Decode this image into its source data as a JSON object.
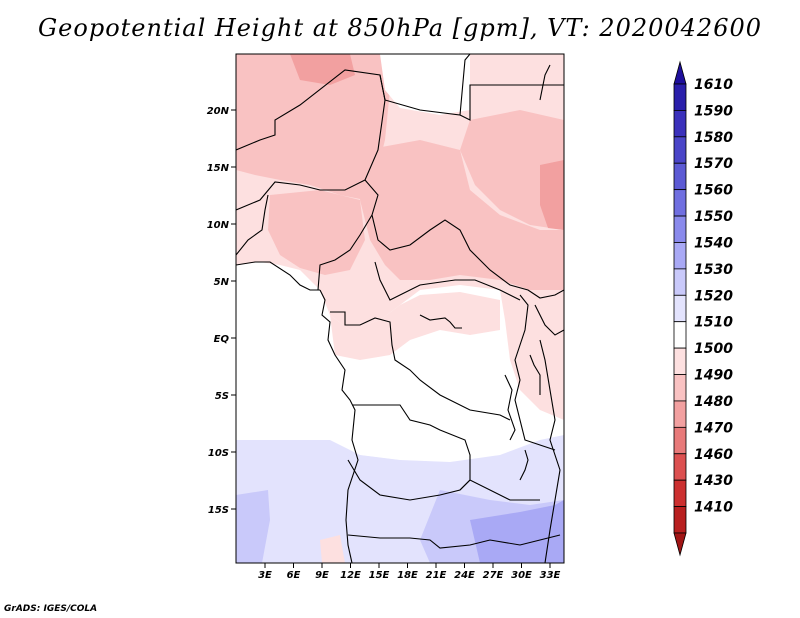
{
  "title": "Geopotential Height at 850hPa [gpm], VT: 2020042600",
  "footer": "GrADS: IGES/COLA",
  "map": {
    "lat_ticks": [
      "20N",
      "15N",
      "10N",
      "5N",
      "EQ",
      "5S",
      "10S",
      "15S"
    ],
    "lon_ticks": [
      "3E",
      "6E",
      "9E",
      "12E",
      "15E",
      "18E",
      "21E",
      "24E",
      "27E",
      "30E",
      "33E"
    ]
  },
  "colorbar": {
    "levels": [
      "1610",
      "1590",
      "1580",
      "1570",
      "1560",
      "1550",
      "1540",
      "1530",
      "1520",
      "1510",
      "1500",
      "1490",
      "1480",
      "1470",
      "1460",
      "1430",
      "1410"
    ],
    "colors": [
      "#1e0f9c",
      "#2a1fab",
      "#3a30bb",
      "#4a45c8",
      "#5c5ad4",
      "#706fe0",
      "#8a8aec",
      "#a9a9f5",
      "#c9c9fa",
      "#e3e3fd",
      "#ffffff",
      "#fde0e0",
      "#f9c2c2",
      "#f2a0a0",
      "#e87a7a",
      "#dc5050",
      "#cc3030",
      "#b81f1f",
      "#a11515"
    ]
  }
}
